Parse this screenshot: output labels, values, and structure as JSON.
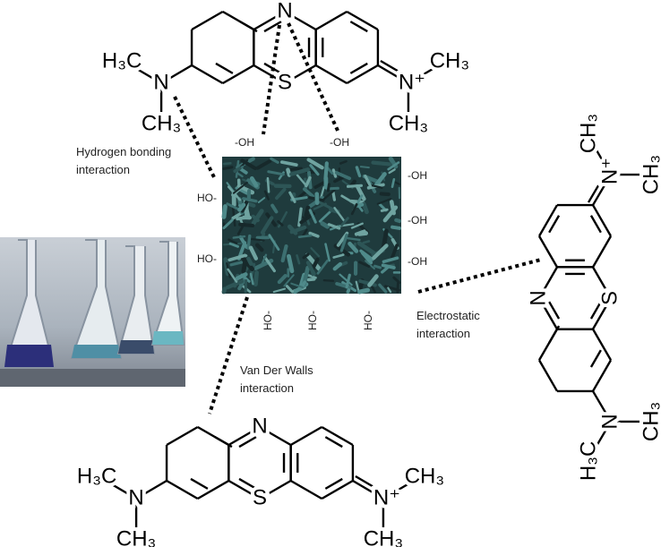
{
  "molecules": [
    {
      "ring_n": "N",
      "ring_s": "S",
      "left_n": "N",
      "left_upper": "H₃C",
      "left_lower": "CH₃",
      "right_n": "N⁺",
      "right_upper": "CH₃",
      "right_lower": "CH₃"
    },
    {
      "ring_n": "N",
      "ring_s": "S",
      "left_n": "N",
      "left_upper": "H₃C",
      "left_lower": "CH₃",
      "right_n": "N⁺",
      "right_upper": "CH₃",
      "right_lower": "CH₃"
    },
    {
      "ring_n": "N",
      "ring_s": "S",
      "left_n": "N",
      "left_upper": "H₃C",
      "left_lower": "CH₃",
      "right_n": "N⁺",
      "right_upper": "CH₃",
      "right_lower": "CH₃"
    }
  ],
  "interactions": [
    {
      "lines": [
        "Hydrogen bonding",
        "interaction"
      ]
    },
    {
      "lines": [
        "Electrostatic",
        "interaction"
      ]
    },
    {
      "lines": [
        "Van Der Walls",
        "interaction"
      ]
    }
  ],
  "biochar": {
    "top_groups": [
      "-OH",
      "-OH"
    ],
    "left_groups": [
      "HO-",
      "HO-"
    ],
    "right_groups": [
      "-OH",
      "-OH",
      "-OH"
    ],
    "bottom_groups": [
      "HO-",
      "HO-",
      "HO-"
    ]
  }
}
